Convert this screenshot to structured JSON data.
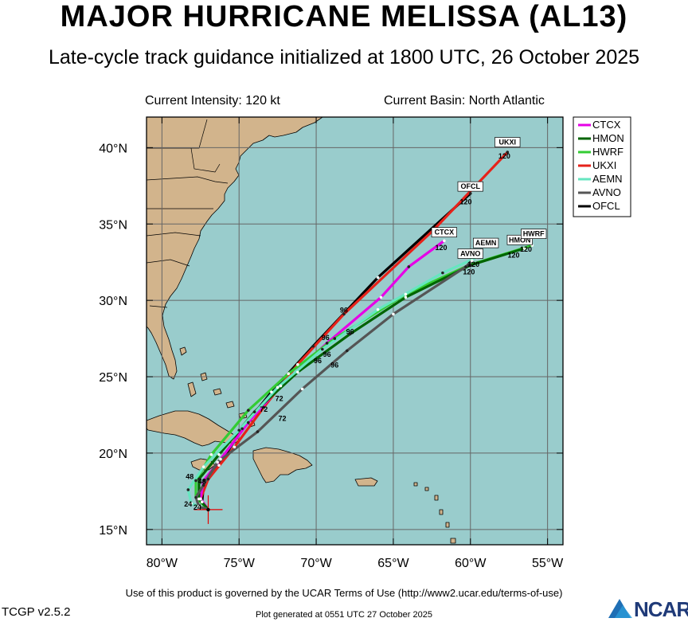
{
  "title": "MAJOR HURRICANE MELISSA (AL13)",
  "subtitle": "Late-cycle track guidance initialized at 1800 UTC, 26 October 2025",
  "current_intensity": "Current Intensity: 120 kt",
  "current_basin": "Current Basin: North Atlantic",
  "terms": "Use of this product is governed by the UCAR Terms of Use (http://www2.ucar.edu/terms-of-use)",
  "version": "TCGP v2.5.2",
  "generated": "Plot generated at 0551 UTC   27 October 2025",
  "logo_text": "NCAR",
  "colors": {
    "ocean": "#99cccc",
    "land": "#d2b48c",
    "grid": "#666666"
  },
  "chart_data": {
    "type": "map",
    "lon_range": [
      -81,
      -54
    ],
    "lat_range": [
      14,
      42
    ],
    "x_ticks": [
      "80°W",
      "75°W",
      "70°W",
      "65°W",
      "60°W",
      "55°W"
    ],
    "y_ticks": [
      "15°N",
      "20°N",
      "25°N",
      "30°N",
      "35°N",
      "40°N"
    ],
    "storm_position": {
      "lon": -77.0,
      "lat": 16.3
    },
    "legend": [
      {
        "name": "CTCX",
        "color": "#e600e6"
      },
      {
        "name": "HMON",
        "color": "#006400"
      },
      {
        "name": "HWRF",
        "color": "#33cc33"
      },
      {
        "name": "UKXI",
        "color": "#e6221a"
      },
      {
        "name": "AEMN",
        "color": "#66e6c0"
      },
      {
        "name": "AVNO",
        "color": "#555555"
      },
      {
        "name": "OFCL",
        "color": "#000000"
      }
    ],
    "tracks": [
      {
        "name": "OFCL",
        "color": "#000000",
        "points": [
          [
            -77.0,
            16.3
          ],
          [
            -77.4,
            16.8
          ],
          [
            -77.3,
            17.9
          ],
          [
            -76.3,
            19.2
          ],
          [
            -74.8,
            21.6
          ],
          [
            -72.9,
            24.0
          ],
          [
            -70.2,
            27.0
          ],
          [
            -66.0,
            31.5
          ],
          [
            -60.0,
            37.0
          ]
        ],
        "end_label": "120"
      },
      {
        "name": "UKXI",
        "color": "#e6221a",
        "points": [
          [
            -77.0,
            16.3
          ],
          [
            -77.5,
            17.0
          ],
          [
            -77.0,
            18.3
          ],
          [
            -75.3,
            20.4
          ],
          [
            -73.4,
            23.0
          ],
          [
            -71.2,
            25.8
          ],
          [
            -68.2,
            29.1
          ],
          [
            -62.4,
            34.6
          ],
          [
            -57.6,
            39.7
          ]
        ],
        "end_label": "120"
      },
      {
        "name": "CTCX",
        "color": "#e600e6",
        "points": [
          [
            -77.0,
            16.3
          ],
          [
            -77.5,
            17.0
          ],
          [
            -77.3,
            18.2
          ],
          [
            -76.2,
            19.6
          ],
          [
            -74.4,
            22.0
          ],
          [
            -72.3,
            24.4
          ],
          [
            -69.3,
            27.2
          ],
          [
            -65.8,
            30.2
          ],
          [
            -64.0,
            32.2
          ],
          [
            -61.7,
            33.9
          ]
        ],
        "end_label": "120"
      },
      {
        "name": "HWRF",
        "color": "#33cc33",
        "points": [
          [
            -77.0,
            16.3
          ],
          [
            -77.8,
            17.1
          ],
          [
            -77.8,
            18.2
          ],
          [
            -76.8,
            19.9
          ],
          [
            -74.4,
            22.8
          ],
          [
            -71.8,
            25.2
          ],
          [
            -68.8,
            27.5
          ],
          [
            -64.2,
            30.4
          ],
          [
            -60.1,
            32.3
          ],
          [
            -56.0,
            33.6
          ]
        ],
        "end_label": "120"
      },
      {
        "name": "HMON",
        "color": "#006400",
        "points": [
          [
            -77.0,
            16.3
          ],
          [
            -77.6,
            17.0
          ],
          [
            -77.6,
            18.3
          ],
          [
            -76.3,
            19.9
          ],
          [
            -74.0,
            22.7
          ],
          [
            -71.2,
            25.3
          ],
          [
            -67.8,
            27.8
          ],
          [
            -64.2,
            30.2
          ],
          [
            -60.0,
            32.3
          ],
          [
            -56.5,
            33.4
          ]
        ],
        "end_label": "120"
      },
      {
        "name": "AEMN",
        "color": "#66e6c0",
        "points": [
          [
            -77.0,
            16.3
          ],
          [
            -78.1,
            16.7
          ],
          [
            -78.3,
            17.6
          ],
          [
            -77.3,
            19.1
          ],
          [
            -75.0,
            21.5
          ],
          [
            -72.5,
            24.3
          ],
          [
            -69.6,
            26.8
          ],
          [
            -66.0,
            29.4
          ],
          [
            -61.8,
            31.8
          ],
          [
            -59.6,
            32.8
          ]
        ],
        "end_label": "120"
      },
      {
        "name": "AVNO",
        "color": "#555555",
        "points": [
          [
            -77.0,
            16.3
          ],
          [
            -77.6,
            16.5
          ],
          [
            -77.8,
            17.1
          ],
          [
            -76.4,
            19.4
          ],
          [
            -73.8,
            21.4
          ],
          [
            -70.9,
            24.2
          ],
          [
            -68.0,
            26.7
          ],
          [
            -65.0,
            29.1
          ],
          [
            -60.3,
            32.2
          ],
          [
            -59.9,
            32.6
          ]
        ],
        "end_label": "120"
      }
    ],
    "labels": [
      {
        "text": "UKXI",
        "lon": -57.6,
        "lat": 40.2,
        "boxed": true
      },
      {
        "text": "120",
        "lon": -57.8,
        "lat": 39.3,
        "boxed": false
      },
      {
        "text": "OFCL",
        "lon": -60.0,
        "lat": 37.3,
        "boxed": true
      },
      {
        "text": "120",
        "lon": -60.3,
        "lat": 36.3,
        "boxed": false
      },
      {
        "text": "CTCX",
        "lon": -61.7,
        "lat": 34.3,
        "boxed": true
      },
      {
        "text": "120",
        "lon": -61.9,
        "lat": 33.3,
        "boxed": false
      },
      {
        "text": "AEMN",
        "lon": -59.0,
        "lat": 33.6,
        "boxed": true
      },
      {
        "text": "AVNO",
        "lon": -60.0,
        "lat": 32.9,
        "boxed": true
      },
      {
        "text": "120",
        "lon": -59.8,
        "lat": 32.2,
        "boxed": false
      },
      {
        "text": "120",
        "lon": -60.1,
        "lat": 31.7,
        "boxed": false
      },
      {
        "text": "HMON",
        "lon": -56.8,
        "lat": 33.8,
        "boxed": true
      },
      {
        "text": "HWRF",
        "lon": -55.9,
        "lat": 34.2,
        "boxed": true
      },
      {
        "text": "120",
        "lon": -56.4,
        "lat": 33.2,
        "boxed": false
      },
      {
        "text": "120",
        "lon": -57.2,
        "lat": 32.8,
        "boxed": false
      },
      {
        "text": "96",
        "lon": -69.4,
        "lat": 27.4,
        "boxed": false
      },
      {
        "text": "96",
        "lon": -68.2,
        "lat": 29.2,
        "boxed": false
      },
      {
        "text": "96",
        "lon": -67.8,
        "lat": 27.8,
        "boxed": false
      },
      {
        "text": "96",
        "lon": -69.3,
        "lat": 26.3,
        "boxed": false
      },
      {
        "text": "96",
        "lon": -69.9,
        "lat": 25.9,
        "boxed": false
      },
      {
        "text": "96",
        "lon": -68.8,
        "lat": 25.6,
        "boxed": false
      },
      {
        "text": "72",
        "lon": -73.4,
        "lat": 22.7,
        "boxed": false
      },
      {
        "text": "72",
        "lon": -72.4,
        "lat": 23.4,
        "boxed": false
      },
      {
        "text": "72",
        "lon": -72.2,
        "lat": 22.1,
        "boxed": false
      },
      {
        "text": "48",
        "lon": -78.2,
        "lat": 18.3,
        "boxed": false
      },
      {
        "text": "48",
        "lon": -77.4,
        "lat": 18.0,
        "boxed": false
      },
      {
        "text": "24",
        "lon": -78.3,
        "lat": 16.5,
        "boxed": false
      },
      {
        "text": "24",
        "lon": -77.7,
        "lat": 16.3,
        "boxed": false
      }
    ]
  }
}
